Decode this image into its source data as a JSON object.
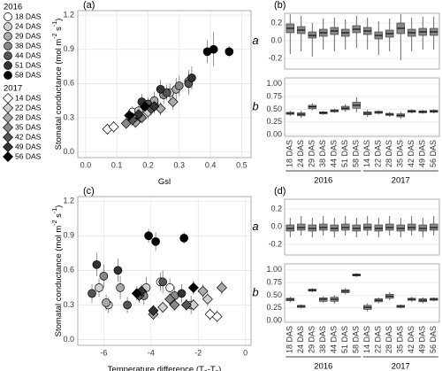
{
  "chart_data": [
    {
      "type": "scatter",
      "tag": "(a)",
      "ylabel": [
        "Stomatal conductance (mol m",
        "-2",
        " s",
        "-1",
        ")"
      ],
      "xlabel": [
        "Gsl"
      ],
      "xlim": [
        -0.025,
        0.53
      ],
      "ylim": [
        -0.05,
        1.24
      ],
      "xticks": [
        {
          "value": 0,
          "label": "0.0"
        },
        0.1,
        0.2,
        0.3,
        0.4,
        0.5
      ],
      "yticks": [
        {
          "value": 0,
          "label": "0.0"
        },
        0.3,
        0.6,
        0.9,
        1.2
      ],
      "grid": true,
      "legend_titles": [
        "2016",
        "2017"
      ],
      "series": [
        {
          "name": "18 DAS",
          "color": "#ffffff",
          "marker": "circle",
          "x": [
            0.15,
            0.17
          ],
          "values": [
            0.35,
            0.3
          ],
          "errors": [
            0.05,
            0.05
          ]
        },
        {
          "name": "24 DAS",
          "color": "#d0d0d0",
          "marker": "circle",
          "x": [
            0.17,
            0.22,
            0.27
          ],
          "values": [
            0.36,
            0.42,
            0.52
          ],
          "errors": [
            0.05,
            0.06,
            0.08
          ]
        },
        {
          "name": "29 DAS",
          "color": "#aaaaaa",
          "marker": "circle",
          "x": [
            0.22,
            0.29,
            0.33
          ],
          "values": [
            0.45,
            0.55,
            0.62
          ],
          "errors": [
            0.08,
            0.1,
            0.1
          ]
        },
        {
          "name": "38 DAS",
          "color": "#888888",
          "marker": "circle",
          "x": [
            0.19,
            0.25,
            0.3
          ],
          "values": [
            0.4,
            0.5,
            0.58
          ],
          "errors": [
            0.06,
            0.08,
            0.09
          ]
        },
        {
          "name": "44 DAS",
          "color": "#555555",
          "marker": "circle",
          "x": [
            0.2,
            0.26,
            0.33
          ],
          "values": [
            0.42,
            0.52,
            0.6
          ],
          "errors": [
            0.06,
            0.07,
            0.1
          ]
        },
        {
          "name": "51 DAS",
          "color": "#333333",
          "marker": "circle",
          "x": [
            0.18,
            0.24,
            0.34
          ],
          "values": [
            0.44,
            0.55,
            0.65
          ],
          "errors": [
            0.07,
            0.08,
            0.1
          ]
        },
        {
          "name": "58 DAS",
          "color": "#000000",
          "marker": "circle",
          "x": [
            0.39,
            0.41,
            0.46
          ],
          "values": [
            0.88,
            0.9,
            0.88
          ],
          "errors": [
            0.1,
            0.15,
            0.05
          ]
        },
        {
          "name": "14 DAS",
          "color": "#ffffff",
          "marker": "diamond",
          "x": [
            0.07,
            0.09
          ],
          "values": [
            0.2,
            0.22
          ],
          "errors": [
            0.05,
            0.05
          ]
        },
        {
          "name": "22 DAS",
          "color": "#d0d0d0",
          "marker": "diamond",
          "x": [
            0.15,
            0.2
          ],
          "values": [
            0.3,
            0.35
          ],
          "errors": [
            0.05,
            0.06
          ]
        },
        {
          "name": "28 DAS",
          "color": "#aaaaaa",
          "marker": "diamond",
          "x": [
            0.16,
            0.24,
            0.28
          ],
          "values": [
            0.26,
            0.38,
            0.44
          ],
          "errors": [
            0.05,
            0.06,
            0.07
          ]
        },
        {
          "name": "35 DAS",
          "color": "#888888",
          "marker": "diamond",
          "x": [
            0.13,
            0.18
          ],
          "values": [
            0.25,
            0.3
          ],
          "errors": [
            0.04,
            0.05
          ]
        },
        {
          "name": "42 DAS",
          "color": "#555555",
          "marker": "diamond",
          "x": [
            0.15,
            0.21
          ],
          "values": [
            0.28,
            0.38
          ],
          "errors": [
            0.05,
            0.06
          ]
        },
        {
          "name": "49 DAS",
          "color": "#333333",
          "marker": "diamond",
          "x": [
            0.17,
            0.22
          ],
          "values": [
            0.33,
            0.4
          ],
          "errors": [
            0.05,
            0.06
          ]
        },
        {
          "name": "56 DAS",
          "color": "#000000",
          "marker": "diamond",
          "x": [
            0.14,
            0.19
          ],
          "values": [
            0.32,
            0.4
          ],
          "errors": [
            0.05,
            0.06
          ]
        }
      ]
    },
    {
      "type": "box",
      "tag": "(b)",
      "label": "a",
      "color": "#888888",
      "grid": true,
      "ylim": [
        -0.32,
        0.31
      ],
      "yticks": [
        0.2,
        {
          "value": 0,
          "label": "0.0"
        },
        -0.2
      ],
      "median": [
        0.14,
        0.12,
        0.06,
        0.09,
        0.11,
        0.09,
        0.13,
        0.11,
        0.06,
        0.08,
        0.14,
        0.09,
        0.1,
        0.1
      ],
      "q1": [
        0.09,
        0.08,
        0.03,
        0.05,
        0.07,
        0.05,
        0.09,
        0.07,
        0.02,
        0.04,
        0.08,
        0.05,
        0.06,
        0.06
      ],
      "q3": [
        0.19,
        0.16,
        0.1,
        0.13,
        0.15,
        0.13,
        0.17,
        0.15,
        0.1,
        0.12,
        0.2,
        0.13,
        0.14,
        0.14
      ],
      "whisker_low": [
        -0.15,
        -0.12,
        -0.18,
        -0.1,
        -0.12,
        -0.1,
        -0.08,
        -0.1,
        -0.16,
        -0.12,
        -0.22,
        -0.12,
        -0.1,
        -0.1
      ],
      "whisker_high": [
        0.3,
        0.28,
        0.2,
        0.25,
        0.26,
        0.24,
        0.28,
        0.26,
        0.22,
        0.25,
        0.3,
        0.26,
        0.27,
        0.27
      ]
    },
    {
      "type": "box",
      "label": "b",
      "color": "#888888",
      "grid": true,
      "ylim": [
        -0.035,
        1.12
      ],
      "yticks": [
        {
          "value": 1,
          "label": "1.00"
        },
        0.75,
        {
          "value": 0.5,
          "label": "0.50"
        },
        0.25,
        {
          "value": 0,
          "label": "0.00"
        }
      ],
      "categories": [
        "18 DAS",
        "24 DAS",
        "29 DAS",
        "38 DAS",
        "44 DAS",
        "51 DAS",
        "58 DAS",
        "14 DAS",
        "22 DAS",
        "28 DAS",
        "35 DAS",
        "42 DAS",
        "49 DAS",
        "56 DAS"
      ],
      "group_labels": [
        "2016",
        "2017"
      ],
      "median": [
        0.42,
        0.4,
        0.55,
        0.43,
        0.47,
        0.52,
        0.58,
        0.42,
        0.44,
        0.4,
        0.38,
        0.46,
        0.45,
        0.46
      ],
      "q1": [
        0.4,
        0.37,
        0.51,
        0.41,
        0.45,
        0.49,
        0.52,
        0.39,
        0.42,
        0.38,
        0.35,
        0.44,
        0.43,
        0.44
      ],
      "q3": [
        0.44,
        0.43,
        0.58,
        0.45,
        0.49,
        0.56,
        0.64,
        0.45,
        0.46,
        0.42,
        0.41,
        0.48,
        0.47,
        0.48
      ],
      "whisker_low": [
        0.37,
        0.33,
        0.48,
        0.39,
        0.43,
        0.45,
        0.44,
        0.35,
        0.4,
        0.35,
        0.31,
        0.42,
        0.41,
        0.42
      ],
      "whisker_high": [
        0.47,
        0.47,
        0.62,
        0.47,
        0.51,
        0.6,
        0.74,
        0.49,
        0.48,
        0.45,
        0.45,
        0.5,
        0.49,
        0.5
      ]
    },
    {
      "type": "scatter",
      "tag": "(c)",
      "ylabel": [
        "Stomatal conductance (mol m",
        "-2",
        " s",
        "-1",
        ")"
      ],
      "xlabel": [
        "Temperature difference (T",
        "a",
        "-T",
        "s",
        ")"
      ],
      "xlim": [
        -7.1,
        0.24
      ],
      "ylim": [
        -0.05,
        1.24
      ],
      "xticks": [
        -6,
        -4,
        -2,
        0
      ],
      "yticks": [
        {
          "value": 0,
          "label": "0.0"
        },
        0.3,
        0.6,
        0.9,
        1.2
      ],
      "grid": true,
      "series": [
        {
          "color": "#ffffff",
          "marker": "circle",
          "x": [
            -3.2,
            -3.6
          ],
          "values": [
            0.45,
            0.5
          ],
          "errors": [
            0.08,
            0.08
          ]
        },
        {
          "color": "#d0d0d0",
          "marker": "circle",
          "x": [
            -6.2,
            -5.8,
            -4.2
          ],
          "values": [
            0.45,
            0.3,
            0.45
          ],
          "errors": [
            0.08,
            0.07,
            0.09
          ]
        },
        {
          "color": "#aaaaaa",
          "marker": "circle",
          "x": [
            -5.9,
            -5.3,
            -2.3
          ],
          "values": [
            0.32,
            0.45,
            0.3
          ],
          "errors": [
            0.07,
            0.1,
            0.08
          ]
        },
        {
          "color": "#888888",
          "marker": "circle",
          "x": [
            -6.0,
            -4.3,
            -3.0
          ],
          "values": [
            0.55,
            0.38,
            0.38
          ],
          "errors": [
            0.1,
            0.08,
            0.08
          ]
        },
        {
          "color": "#555555",
          "marker": "circle",
          "x": [
            -6.5,
            -5.0,
            -3.5
          ],
          "values": [
            0.4,
            0.3,
            0.5
          ],
          "errors": [
            0.08,
            0.07,
            0.1
          ]
        },
        {
          "color": "#333333",
          "marker": "circle",
          "x": [
            -6.3,
            -5.4,
            -2.7
          ],
          "values": [
            0.65,
            0.6,
            0.4
          ],
          "errors": [
            0.1,
            0.1,
            0.08
          ]
        },
        {
          "color": "#000000",
          "marker": "circle",
          "x": [
            -4.1,
            -3.8,
            -2.6
          ],
          "values": [
            0.9,
            0.85,
            0.88
          ],
          "errors": [
            0.06,
            0.08,
            0.05
          ]
        },
        {
          "color": "#ffffff",
          "marker": "diamond",
          "x": [
            -1.2,
            -1.5
          ],
          "values": [
            0.2,
            0.22
          ],
          "errors": [
            0.05,
            0.05
          ]
        },
        {
          "color": "#d0d0d0",
          "marker": "diamond",
          "x": [
            -1.6,
            -2.2,
            -3.5
          ],
          "values": [
            0.35,
            0.3,
            0.28
          ],
          "errors": [
            0.06,
            0.05,
            0.05
          ]
        },
        {
          "color": "#aaaaaa",
          "marker": "diamond",
          "x": [
            -1.0,
            -1.8,
            -3.9
          ],
          "values": [
            0.45,
            0.42,
            0.22
          ],
          "errors": [
            0.06,
            0.06,
            0.05
          ]
        },
        {
          "color": "#888888",
          "marker": "diamond",
          "x": [
            -3.2,
            -3.0
          ],
          "values": [
            0.35,
            0.3
          ],
          "errors": [
            0.05,
            0.05
          ]
        },
        {
          "color": "#555555",
          "marker": "diamond",
          "x": [
            -2.5,
            -4.5
          ],
          "values": [
            0.3,
            0.38
          ],
          "errors": [
            0.05,
            0.06
          ]
        },
        {
          "color": "#333333",
          "marker": "diamond",
          "x": [
            -4.4,
            -3.9
          ],
          "values": [
            0.42,
            0.25
          ],
          "errors": [
            0.06,
            0.05
          ]
        },
        {
          "color": "#000000",
          "marker": "diamond",
          "x": [
            -2.2,
            -4.6
          ],
          "values": [
            0.45,
            0.4
          ],
          "errors": [
            0.06,
            0.06
          ]
        }
      ]
    },
    {
      "type": "box",
      "tag": "(d)",
      "label": "a",
      "color": "#888888",
      "grid": true,
      "ylim": [
        -0.32,
        0.31
      ],
      "yticks": [
        0.2,
        {
          "value": 0,
          "label": "0.0"
        },
        -0.2
      ],
      "median": [
        -0.02,
        -0.01,
        -0.02,
        -0.01,
        -0.02,
        -0.01,
        -0.02,
        -0.01,
        -0.02,
        -0.01,
        -0.02,
        -0.01,
        -0.02,
        -0.01
      ],
      "q1": [
        -0.05,
        -0.04,
        -0.05,
        -0.04,
        -0.05,
        -0.04,
        -0.05,
        -0.04,
        -0.05,
        -0.04,
        -0.05,
        -0.04,
        -0.05,
        -0.04
      ],
      "q3": [
        0.02,
        0.03,
        0.02,
        0.03,
        0.02,
        0.03,
        0.02,
        0.03,
        0.02,
        0.03,
        0.02,
        0.03,
        0.02,
        0.03
      ],
      "whisker_low": [
        -0.12,
        -0.1,
        -0.12,
        -0.1,
        -0.12,
        -0.1,
        -0.12,
        -0.1,
        -0.12,
        -0.1,
        -0.12,
        -0.1,
        -0.12,
        -0.1
      ],
      "whisker_high": [
        0.1,
        0.12,
        0.1,
        0.12,
        0.1,
        0.12,
        0.1,
        0.12,
        0.1,
        0.12,
        0.1,
        0.12,
        0.1,
        0.12
      ]
    },
    {
      "type": "box",
      "label": "b",
      "color": "#888888",
      "grid": true,
      "ylim": [
        -0.035,
        1.12
      ],
      "yticks": [
        {
          "value": 1,
          "label": "1.00"
        },
        0.75,
        {
          "value": 0.5,
          "label": "0.50"
        },
        0.25,
        {
          "value": 0,
          "label": "0.00"
        }
      ],
      "categories": [
        "18 DAS",
        "24 DAS",
        "29 DAS",
        "38 DAS",
        "44 DAS",
        "51 DAS",
        "58 DAS",
        "14 DAS",
        "22 DAS",
        "28 DAS",
        "35 DAS",
        "42 DAS",
        "49 DAS",
        "56 DAS"
      ],
      "group_labels": [
        "2016",
        "2017"
      ],
      "median": [
        0.42,
        0.28,
        0.6,
        0.42,
        0.42,
        0.58,
        0.9,
        0.26,
        0.4,
        0.48,
        0.28,
        0.42,
        0.4,
        0.42
      ],
      "q1": [
        0.39,
        0.26,
        0.58,
        0.38,
        0.38,
        0.55,
        0.88,
        0.22,
        0.37,
        0.44,
        0.26,
        0.4,
        0.37,
        0.4
      ],
      "q3": [
        0.44,
        0.3,
        0.62,
        0.45,
        0.46,
        0.61,
        0.92,
        0.3,
        0.43,
        0.52,
        0.3,
        0.44,
        0.43,
        0.44
      ],
      "whisker_low": [
        0.36,
        0.24,
        0.56,
        0.35,
        0.33,
        0.52,
        0.86,
        0.18,
        0.34,
        0.4,
        0.24,
        0.37,
        0.34,
        0.38
      ],
      "whisker_high": [
        0.47,
        0.32,
        0.64,
        0.48,
        0.5,
        0.64,
        0.94,
        0.34,
        0.46,
        0.56,
        0.32,
        0.47,
        0.46,
        0.46
      ]
    }
  ]
}
